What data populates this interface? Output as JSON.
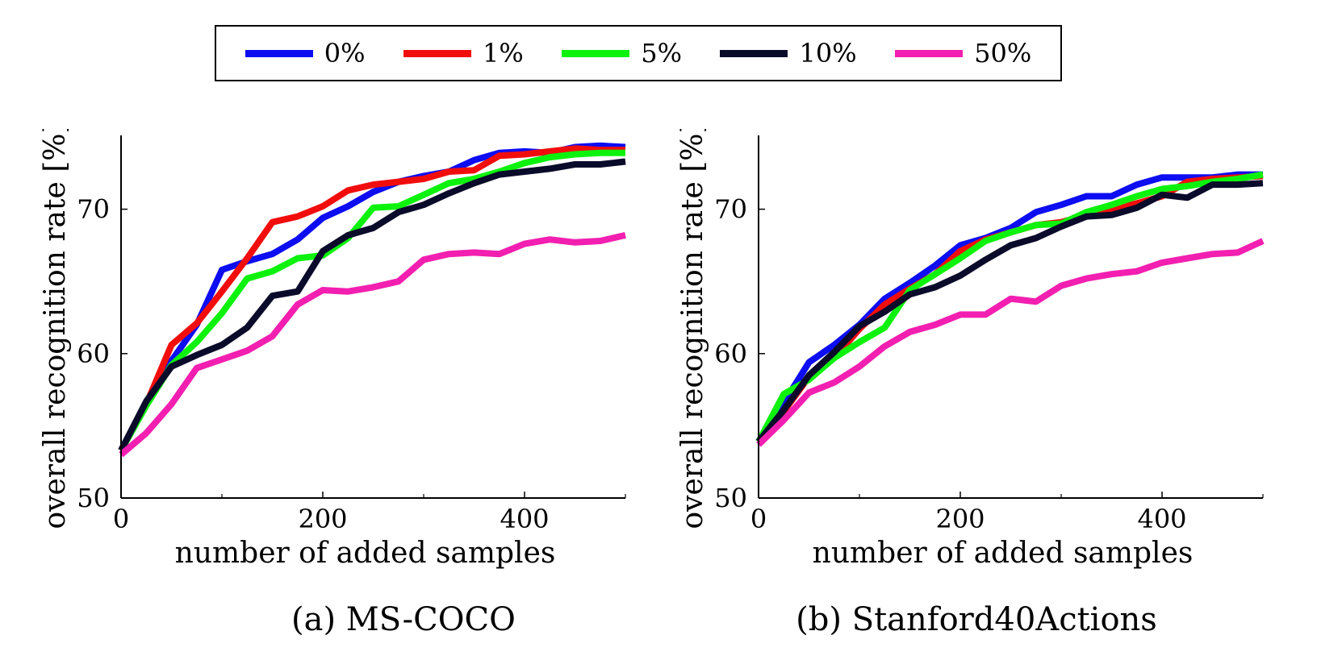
{
  "legend": {
    "items": [
      {
        "label": "0%",
        "color": "#0d0df2"
      },
      {
        "label": "1%",
        "color": "#f20d0d"
      },
      {
        "label": "5%",
        "color": "#0df20d"
      },
      {
        "label": "10%",
        "color": "#0a0a2a"
      },
      {
        "label": "50%",
        "color": "#f21fb0"
      }
    ]
  },
  "chart_data": [
    {
      "type": "line",
      "caption": "(a) MS-COCO",
      "xlabel": "number of added samples",
      "ylabel": "overall recognition rate [%]",
      "xlim": [
        0,
        500
      ],
      "ylim": [
        50,
        75
      ],
      "xticks": [
        0,
        200,
        400
      ],
      "yticks": [
        50,
        60,
        70
      ],
      "grid": false,
      "x": [
        0,
        25,
        50,
        75,
        100,
        125,
        150,
        175,
        200,
        225,
        250,
        275,
        300,
        325,
        350,
        375,
        400,
        425,
        450,
        475,
        500
      ],
      "series": [
        {
          "name": "0%",
          "color": "#0d0df2",
          "values": [
            53.3,
            56.5,
            59.5,
            62.0,
            65.8,
            66.4,
            66.9,
            67.9,
            69.4,
            70.2,
            71.2,
            71.9,
            72.3,
            72.6,
            73.4,
            73.9,
            74.0,
            73.9,
            74.3,
            74.4,
            74.3
          ]
        },
        {
          "name": "1%",
          "color": "#f20d0d",
          "values": [
            53.3,
            56.5,
            60.6,
            62.1,
            64.3,
            66.6,
            69.1,
            69.5,
            70.2,
            71.3,
            71.7,
            71.9,
            72.1,
            72.6,
            72.7,
            73.7,
            73.8,
            74.0,
            74.2,
            74.1,
            74.1
          ]
        },
        {
          "name": "5%",
          "color": "#0df20d",
          "values": [
            53.3,
            56.4,
            59.2,
            60.8,
            62.8,
            65.2,
            65.7,
            66.6,
            66.8,
            68.0,
            70.1,
            70.2,
            71.0,
            71.8,
            72.1,
            72.6,
            73.2,
            73.6,
            73.8,
            73.9,
            73.9
          ]
        },
        {
          "name": "10%",
          "color": "#0a0a2a",
          "values": [
            53.3,
            56.7,
            59.1,
            59.9,
            60.6,
            61.8,
            64.0,
            64.3,
            67.1,
            68.2,
            68.7,
            69.8,
            70.3,
            71.1,
            71.8,
            72.4,
            72.6,
            72.8,
            73.1,
            73.1,
            73.3
          ]
        },
        {
          "name": "50%",
          "color": "#f21fb0",
          "values": [
            53.0,
            54.5,
            56.5,
            59.0,
            59.6,
            60.2,
            61.2,
            63.4,
            64.4,
            64.3,
            64.6,
            65.0,
            66.5,
            66.9,
            67.0,
            66.9,
            67.6,
            67.9,
            67.7,
            67.8,
            68.2
          ]
        }
      ]
    },
    {
      "type": "line",
      "caption": "(b) Stanford40Actions",
      "xlabel": "number of added samples",
      "ylabel": "overall recognition rate [%]",
      "xlim": [
        0,
        500
      ],
      "ylim": [
        50,
        75
      ],
      "xticks": [
        0,
        200,
        400
      ],
      "yticks": [
        50,
        60,
        70
      ],
      "grid": false,
      "x": [
        0,
        25,
        50,
        75,
        100,
        125,
        150,
        175,
        200,
        225,
        250,
        275,
        300,
        325,
        350,
        375,
        400,
        425,
        450,
        475,
        500
      ],
      "series": [
        {
          "name": "0%",
          "color": "#0d0df2",
          "values": [
            53.9,
            56.6,
            59.4,
            60.6,
            62.0,
            63.8,
            64.9,
            66.1,
            67.5,
            68.0,
            68.7,
            69.8,
            70.3,
            70.9,
            70.9,
            71.7,
            72.2,
            72.2,
            72.2,
            72.4,
            72.4
          ]
        },
        {
          "name": "1%",
          "color": "#f20d0d",
          "values": [
            53.9,
            56.0,
            58.4,
            59.7,
            61.7,
            63.4,
            64.5,
            65.5,
            67.1,
            67.9,
            68.4,
            68.9,
            69.1,
            69.6,
            70.0,
            70.4,
            70.9,
            71.9,
            72.1,
            72.2,
            72.3
          ]
        },
        {
          "name": "5%",
          "color": "#0df20d",
          "values": [
            53.9,
            57.2,
            58.2,
            59.7,
            60.8,
            61.8,
            64.4,
            65.5,
            66.6,
            67.8,
            68.4,
            68.9,
            69.0,
            69.8,
            70.3,
            70.9,
            71.4,
            71.6,
            71.9,
            72.1,
            72.4
          ]
        },
        {
          "name": "10%",
          "color": "#0a0a2a",
          "values": [
            53.9,
            56.1,
            58.5,
            60.1,
            61.9,
            62.9,
            64.1,
            64.6,
            65.4,
            66.5,
            67.5,
            68.0,
            68.8,
            69.5,
            69.6,
            70.1,
            71.0,
            70.8,
            71.7,
            71.7,
            71.8
          ]
        },
        {
          "name": "50%",
          "color": "#f21fb0",
          "values": [
            53.7,
            55.4,
            57.3,
            58.0,
            59.1,
            60.5,
            61.5,
            62.0,
            62.7,
            62.7,
            63.8,
            63.6,
            64.7,
            65.2,
            65.5,
            65.7,
            66.3,
            66.6,
            66.9,
            67.0,
            67.8
          ]
        }
      ]
    }
  ]
}
